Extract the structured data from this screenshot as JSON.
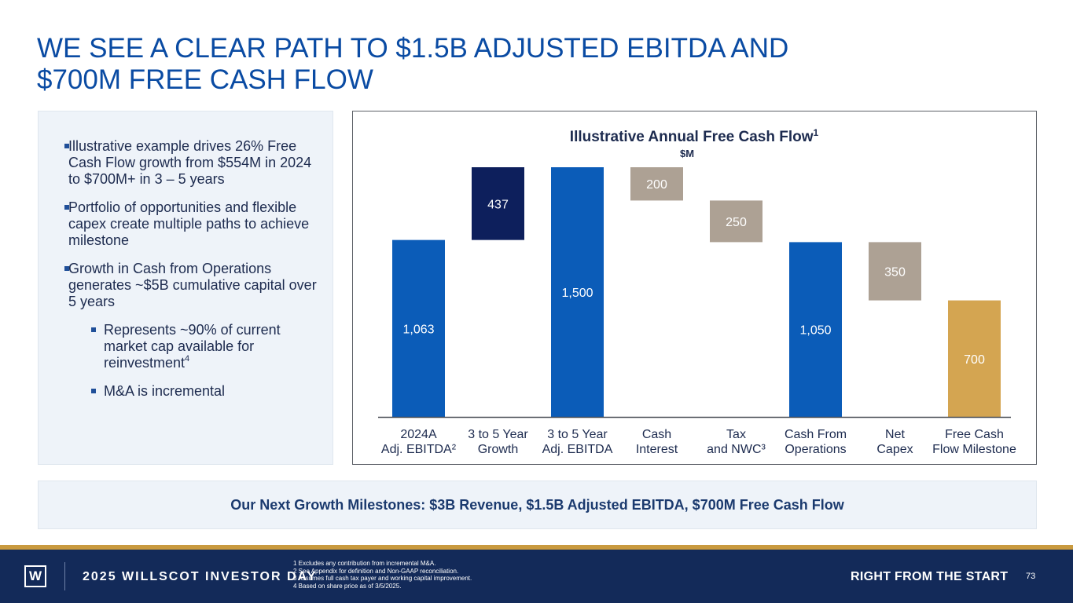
{
  "title_lines": [
    "WE SEE A CLEAR PATH TO $1.5B ADJUSTED EBITDA AND",
    "$700M FREE CASH FLOW"
  ],
  "bullets": [
    {
      "level": 1,
      "text": "Illustrative example drives 26% Free Cash Flow growth from $554M in 2024 to $700M+ in 3 – 5 years"
    },
    {
      "level": 1,
      "text": "Portfolio of opportunities and flexible capex create multiple paths to achieve milestone"
    },
    {
      "level": 1,
      "text": "Growth in Cash from Operations generates ~$5B cumulative capital over 5 years"
    },
    {
      "level": 2,
      "text": "Represents ~90% of current market cap available for reinvestment",
      "sup": "4"
    },
    {
      "level": 2,
      "text": "M&A is incremental"
    }
  ],
  "chart_data": {
    "type": "bar",
    "subtype": "waterfall",
    "title": "Illustrative Annual Free Cash Flow",
    "title_sup": "1",
    "unit_label": "$M",
    "categories": [
      [
        "2024A",
        "Adj. EBITDA²"
      ],
      [
        "3 to 5 Year",
        "Growth"
      ],
      [
        "3 to 5 Year",
        "Adj. EBITDA"
      ],
      [
        "Cash",
        "Interest"
      ],
      [
        "Tax",
        "and NWC³"
      ],
      [
        "Cash From",
        "Operations"
      ],
      [
        "Net",
        "Capex"
      ],
      [
        "Free Cash",
        "Flow Milestone"
      ]
    ],
    "bars": [
      {
        "label": "1,063",
        "bottom": 0,
        "top": 1063,
        "kind": "total"
      },
      {
        "label": "437",
        "bottom": 1063,
        "top": 1500,
        "kind": "increase"
      },
      {
        "label": "1,500",
        "bottom": 0,
        "top": 1500,
        "kind": "total"
      },
      {
        "label": "200",
        "bottom": 1300,
        "top": 1500,
        "kind": "decrease"
      },
      {
        "label": "250",
        "bottom": 1050,
        "top": 1300,
        "kind": "decrease"
      },
      {
        "label": "1,050",
        "bottom": 0,
        "top": 1050,
        "kind": "total"
      },
      {
        "label": "350",
        "bottom": 700,
        "top": 1050,
        "kind": "decrease"
      },
      {
        "label": "700",
        "bottom": 0,
        "top": 700,
        "kind": "milestone"
      }
    ],
    "ylim": [
      0,
      1500
    ],
    "colors": {
      "total": "#0b5cb8",
      "increase": "#0d1f5c",
      "decrease": "#ada194",
      "milestone": "#d4a551"
    }
  },
  "milestone_banner": "Our Next Growth Milestones: $3B Revenue, $1.5B Adjusted EBITDA, $700M Free Cash Flow",
  "footer": {
    "logo_letter": "W",
    "event": "2025 WILLSCOT INVESTOR DAY",
    "notes": [
      "1 Excludes any contribution from incremental M&A.",
      "2 See Appendix for definition and Non-GAAP reconciliation.",
      "3 Assumes full cash tax payer and working capital improvement.",
      "4 Based on share price as of 3/5/2025."
    ],
    "tagline": "RIGHT FROM THE START",
    "page": "73"
  }
}
